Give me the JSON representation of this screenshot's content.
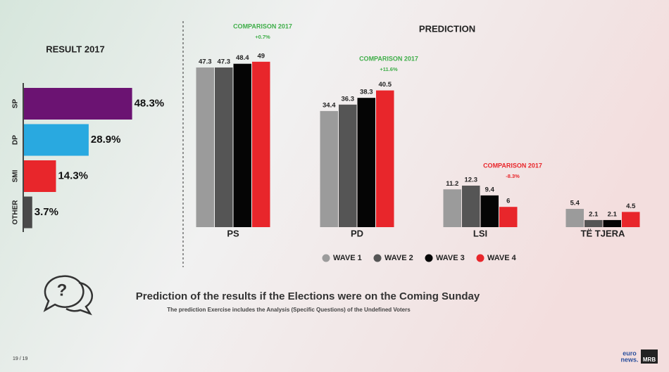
{
  "chart_data": [
    {
      "type": "hbar",
      "title": "RESULT 2017",
      "categories": [
        "SP",
        "DP",
        "SMI",
        "OTHER"
      ],
      "values": [
        48.3,
        28.9,
        14.3,
        3.7
      ],
      "value_labels": [
        "48.3%",
        "28.9%",
        "14.3%",
        "3.7%"
      ],
      "colors": [
        "#6b1372",
        "#29a9e0",
        "#e8262b",
        "#4a4a4a"
      ]
    },
    {
      "type": "bar",
      "title": "PREDICTION",
      "categories": [
        "PS",
        "PD",
        "LSI",
        "TË TJERA"
      ],
      "series": [
        {
          "name": "WAVE 1",
          "color": "#9b9b9b",
          "values": [
            47.3,
            34.4,
            11.2,
            5.4
          ]
        },
        {
          "name": "WAVE 2",
          "color": "#555555",
          "values": [
            47.3,
            36.3,
            12.3,
            2.1
          ]
        },
        {
          "name": "WAVE 3",
          "color": "#050505",
          "values": [
            48.4,
            38.3,
            9.4,
            2.1
          ]
        },
        {
          "name": "WAVE 4",
          "color": "#e8262b",
          "values": [
            49,
            40.5,
            6,
            4.5
          ]
        }
      ],
      "annotations": [
        {
          "text": "COMPARISON 2017",
          "change": "+0.7%",
          "color": "#3fae49"
        },
        {
          "text": "COMPARISON 2017",
          "change": "+11.6%",
          "color": "#3fae49"
        },
        {
          "text": "COMPARISON 2017",
          "change": "-8.3%",
          "color": "#e8262b"
        }
      ]
    }
  ],
  "caption": {
    "title": "Prediction of the results if the Elections were on the Coming Sunday",
    "subtitle": "The prediction Exercise includes the Analysis (Specific Questions) of the Undefined Voters"
  },
  "footer": {
    "page": "19 / 19",
    "logo": [
      "euro",
      "news."
    ],
    "brand": "MRB"
  }
}
